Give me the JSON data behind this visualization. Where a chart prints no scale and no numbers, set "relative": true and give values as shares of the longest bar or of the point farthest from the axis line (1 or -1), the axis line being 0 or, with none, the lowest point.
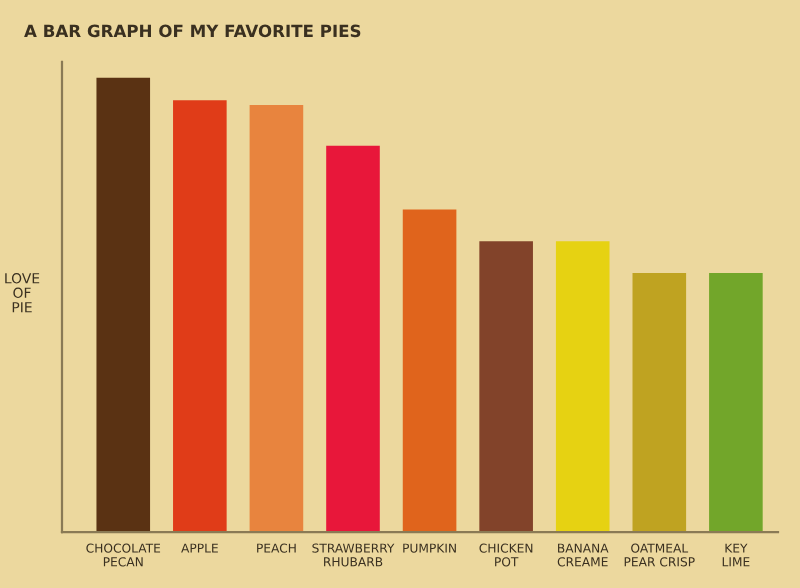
{
  "chart_data": {
    "type": "bar",
    "title": "A BAR GRAPH OF MY FAVORITE PIES",
    "ylabel": "LOVE\nOF\nPIE",
    "relative": true,
    "categories": [
      "CHOCOLATE\nPECAN",
      "APPLE",
      "PEACH",
      "STRAWBERRY\nRHUBARB",
      "PUMPKIN",
      "CHICKEN\nPOT",
      "BANANA\nCREAME",
      "OATMEAL\nPEAR CRISP",
      "KEY\nLIME"
    ],
    "values": [
      1,
      0.95,
      0.94,
      0.85,
      0.71,
      0.64,
      0.64,
      0.57,
      0.57
    ],
    "colors": [
      "#5a3213",
      "#e03c18",
      "#e8843e",
      "#e8173a",
      "#e0641c",
      "#82432a",
      "#e6d212",
      "#bfa321",
      "#72a62a"
    ],
    "grid": false,
    "legend": false
  }
}
